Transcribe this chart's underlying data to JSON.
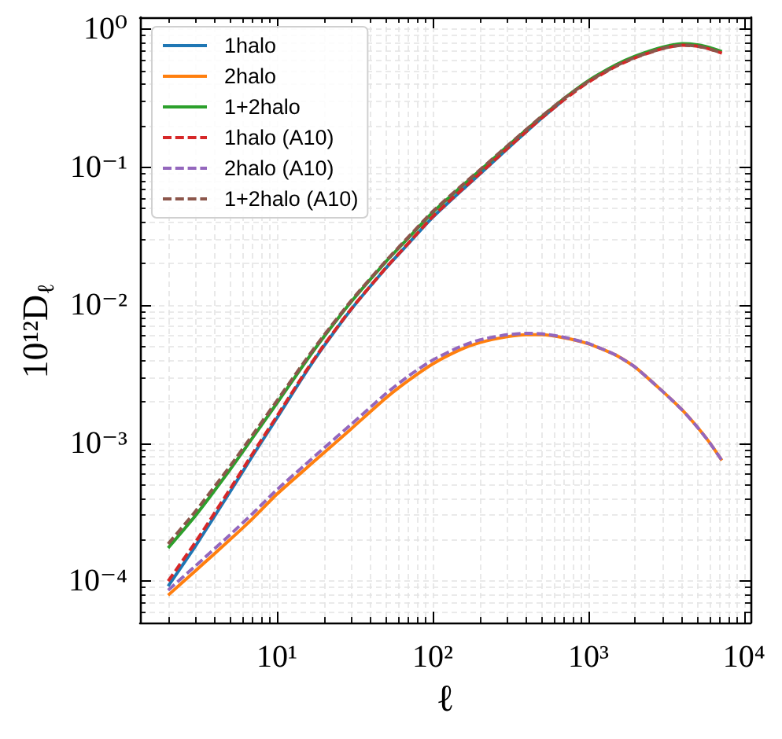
{
  "chart_data": {
    "type": "line",
    "xlabel": "ℓ",
    "ylabel": "10¹²D$_{ℓ}$",
    "x": [
      2,
      3,
      5,
      7,
      10,
      15,
      20,
      30,
      50,
      70,
      100,
      150,
      200,
      300,
      400,
      500,
      700,
      1000,
      1500,
      2000,
      3000,
      4000,
      5000,
      6000,
      7200
    ],
    "series": [
      {
        "name": "1halo",
        "color": "#1f77b4",
        "line_style": "solid",
        "values": [
          9.2e-05,
          0.00018,
          0.000444,
          0.000815,
          0.00152,
          0.00313,
          0.00504,
          0.00933,
          0.0185,
          0.028,
          0.0433,
          0.0662,
          0.0887,
          0.135,
          0.181,
          0.226,
          0.31,
          null,
          null,
          null,
          null,
          null,
          null,
          null,
          null
        ]
      },
      {
        "name": "2halo",
        "color": "#ff7f0e",
        "line_style": "solid",
        "values": [
          7.9e-05,
          0.000119,
          0.0002,
          0.000285,
          0.000427,
          0.00064,
          0.00085,
          0.00127,
          0.00212,
          0.00285,
          0.00375,
          0.00475,
          0.00535,
          0.0059,
          0.0061,
          0.0061,
          0.0058,
          0.00525,
          0.00435,
          0.00355,
          0.00237,
          0.00174,
          0.00131,
          0.00101,
          0.00075
        ]
      },
      {
        "name": "1+2halo",
        "color": "#2ca02c",
        "line_style": "solid",
        "values": [
          0.000174,
          0.000299,
          0.000644,
          0.0011,
          0.00195,
          0.00377,
          0.00589,
          0.0106,
          0.0206,
          0.0308,
          0.047,
          0.071,
          0.094,
          0.141,
          0.187,
          0.232,
          0.316,
          0.424,
          0.551,
          0.638,
          0.742,
          0.785,
          0.772,
          0.737,
          0.688
        ]
      },
      {
        "name": "1halo (A10)",
        "color": "#d62728",
        "line_style": "dashed",
        "values": [
          0.0001,
          0.000192,
          0.000465,
          0.000845,
          0.00157,
          0.0032,
          0.00512,
          0.0094,
          0.0186,
          0.0282,
          0.0438,
          0.067,
          0.0895,
          0.136,
          0.182,
          0.227,
          0.309,
          0.413,
          0.537,
          0.622,
          0.724,
          0.765,
          0.753,
          0.719,
          0.671
        ]
      },
      {
        "name": "2halo (A10)",
        "color": "#9467bd",
        "line_style": "dashed",
        "values": [
          8.6e-05,
          0.000129,
          0.000217,
          0.00031,
          0.00046,
          0.00069,
          0.00092,
          0.00137,
          0.00228,
          0.00307,
          0.004,
          0.005,
          0.0056,
          0.0061,
          0.00625,
          0.0062,
          0.00585,
          0.00528,
          0.00435,
          0.00355,
          0.00237,
          0.00174,
          0.00131,
          0.00101,
          0.00075
        ]
      },
      {
        "name": "1+2halo (A10)",
        "color": "#8c564b",
        "line_style": "dashed",
        "values": [
          0.000186,
          0.000321,
          0.000682,
          0.001155,
          0.00203,
          0.00389,
          0.00604,
          0.0108,
          0.0209,
          0.0313,
          0.0478,
          0.072,
          0.0951,
          0.142,
          0.188,
          0.233,
          0.315,
          0.418,
          0.541,
          0.626,
          0.726,
          0.767,
          0.754,
          0.72,
          0.672
        ]
      }
    ],
    "xlim": [
      1.32,
      11000
    ],
    "ylim": [
      5e-05,
      1.22
    ],
    "xticks": [
      {
        "value": 2,
        "label": null
      },
      {
        "value": 3,
        "label": null
      },
      {
        "value": 4,
        "label": null
      },
      {
        "value": 5,
        "label": null
      },
      {
        "value": 6,
        "label": null
      },
      {
        "value": 7,
        "label": null
      },
      {
        "value": 8,
        "label": null
      },
      {
        "value": 9,
        "label": null
      },
      {
        "value": 10,
        "label": "10¹"
      },
      {
        "value": 20,
        "label": null
      },
      {
        "value": 30,
        "label": null
      },
      {
        "value": 40,
        "label": null
      },
      {
        "value": 50,
        "label": null
      },
      {
        "value": 60,
        "label": null
      },
      {
        "value": 70,
        "label": null
      },
      {
        "value": 80,
        "label": null
      },
      {
        "value": 90,
        "label": null
      },
      {
        "value": 100,
        "label": "10²"
      },
      {
        "value": 200,
        "label": null
      },
      {
        "value": 300,
        "label": null
      },
      {
        "value": 400,
        "label": null
      },
      {
        "value": 500,
        "label": null
      },
      {
        "value": 600,
        "label": null
      },
      {
        "value": 700,
        "label": null
      },
      {
        "value": 800,
        "label": null
      },
      {
        "value": 900,
        "label": null
      },
      {
        "value": 1000,
        "label": "10³"
      },
      {
        "value": 2000,
        "label": null
      },
      {
        "value": 3000,
        "label": null
      },
      {
        "value": 4000,
        "label": null
      },
      {
        "value": 5000,
        "label": null
      },
      {
        "value": 6000,
        "label": null
      },
      {
        "value": 7000,
        "label": null
      },
      {
        "value": 8000,
        "label": null
      },
      {
        "value": 9000,
        "label": null
      },
      {
        "value": 10000,
        "label": "10⁴"
      }
    ],
    "yticks": [
      {
        "value": 5e-05,
        "label": null
      },
      {
        "value": 6e-05,
        "label": null
      },
      {
        "value": 7e-05,
        "label": null
      },
      {
        "value": 8e-05,
        "label": null
      },
      {
        "value": 9e-05,
        "label": null
      },
      {
        "value": 0.0001,
        "label": "10⁻⁴"
      },
      {
        "value": 0.0002,
        "label": null
      },
      {
        "value": 0.0003,
        "label": null
      },
      {
        "value": 0.0004,
        "label": null
      },
      {
        "value": 0.0005,
        "label": null
      },
      {
        "value": 0.0006,
        "label": null
      },
      {
        "value": 0.0007,
        "label": null
      },
      {
        "value": 0.0008,
        "label": null
      },
      {
        "value": 0.0009,
        "label": null
      },
      {
        "value": 0.001,
        "label": "10⁻³"
      },
      {
        "value": 0.002,
        "label": null
      },
      {
        "value": 0.003,
        "label": null
      },
      {
        "value": 0.004,
        "label": null
      },
      {
        "value": 0.005,
        "label": null
      },
      {
        "value": 0.006,
        "label": null
      },
      {
        "value": 0.007,
        "label": null
      },
      {
        "value": 0.008,
        "label": null
      },
      {
        "value": 0.009,
        "label": null
      },
      {
        "value": 0.01,
        "label": "10⁻²"
      },
      {
        "value": 0.02,
        "label": null
      },
      {
        "value": 0.03,
        "label": null
      },
      {
        "value": 0.04,
        "label": null
      },
      {
        "value": 0.05,
        "label": null
      },
      {
        "value": 0.06,
        "label": null
      },
      {
        "value": 0.07,
        "label": null
      },
      {
        "value": 0.08,
        "label": null
      },
      {
        "value": 0.09,
        "label": null
      },
      {
        "value": 0.1,
        "label": "10⁻¹"
      },
      {
        "value": 0.2,
        "label": null
      },
      {
        "value": 0.3,
        "label": null
      },
      {
        "value": 0.4,
        "label": null
      },
      {
        "value": 0.5,
        "label": null
      },
      {
        "value": 0.6,
        "label": null
      },
      {
        "value": 0.7,
        "label": null
      },
      {
        "value": 0.8,
        "label": null
      },
      {
        "value": 0.9,
        "label": null
      },
      {
        "value": 1,
        "label": "10⁰"
      }
    ],
    "log": "xy",
    "grid": true,
    "legend": "top left"
  }
}
